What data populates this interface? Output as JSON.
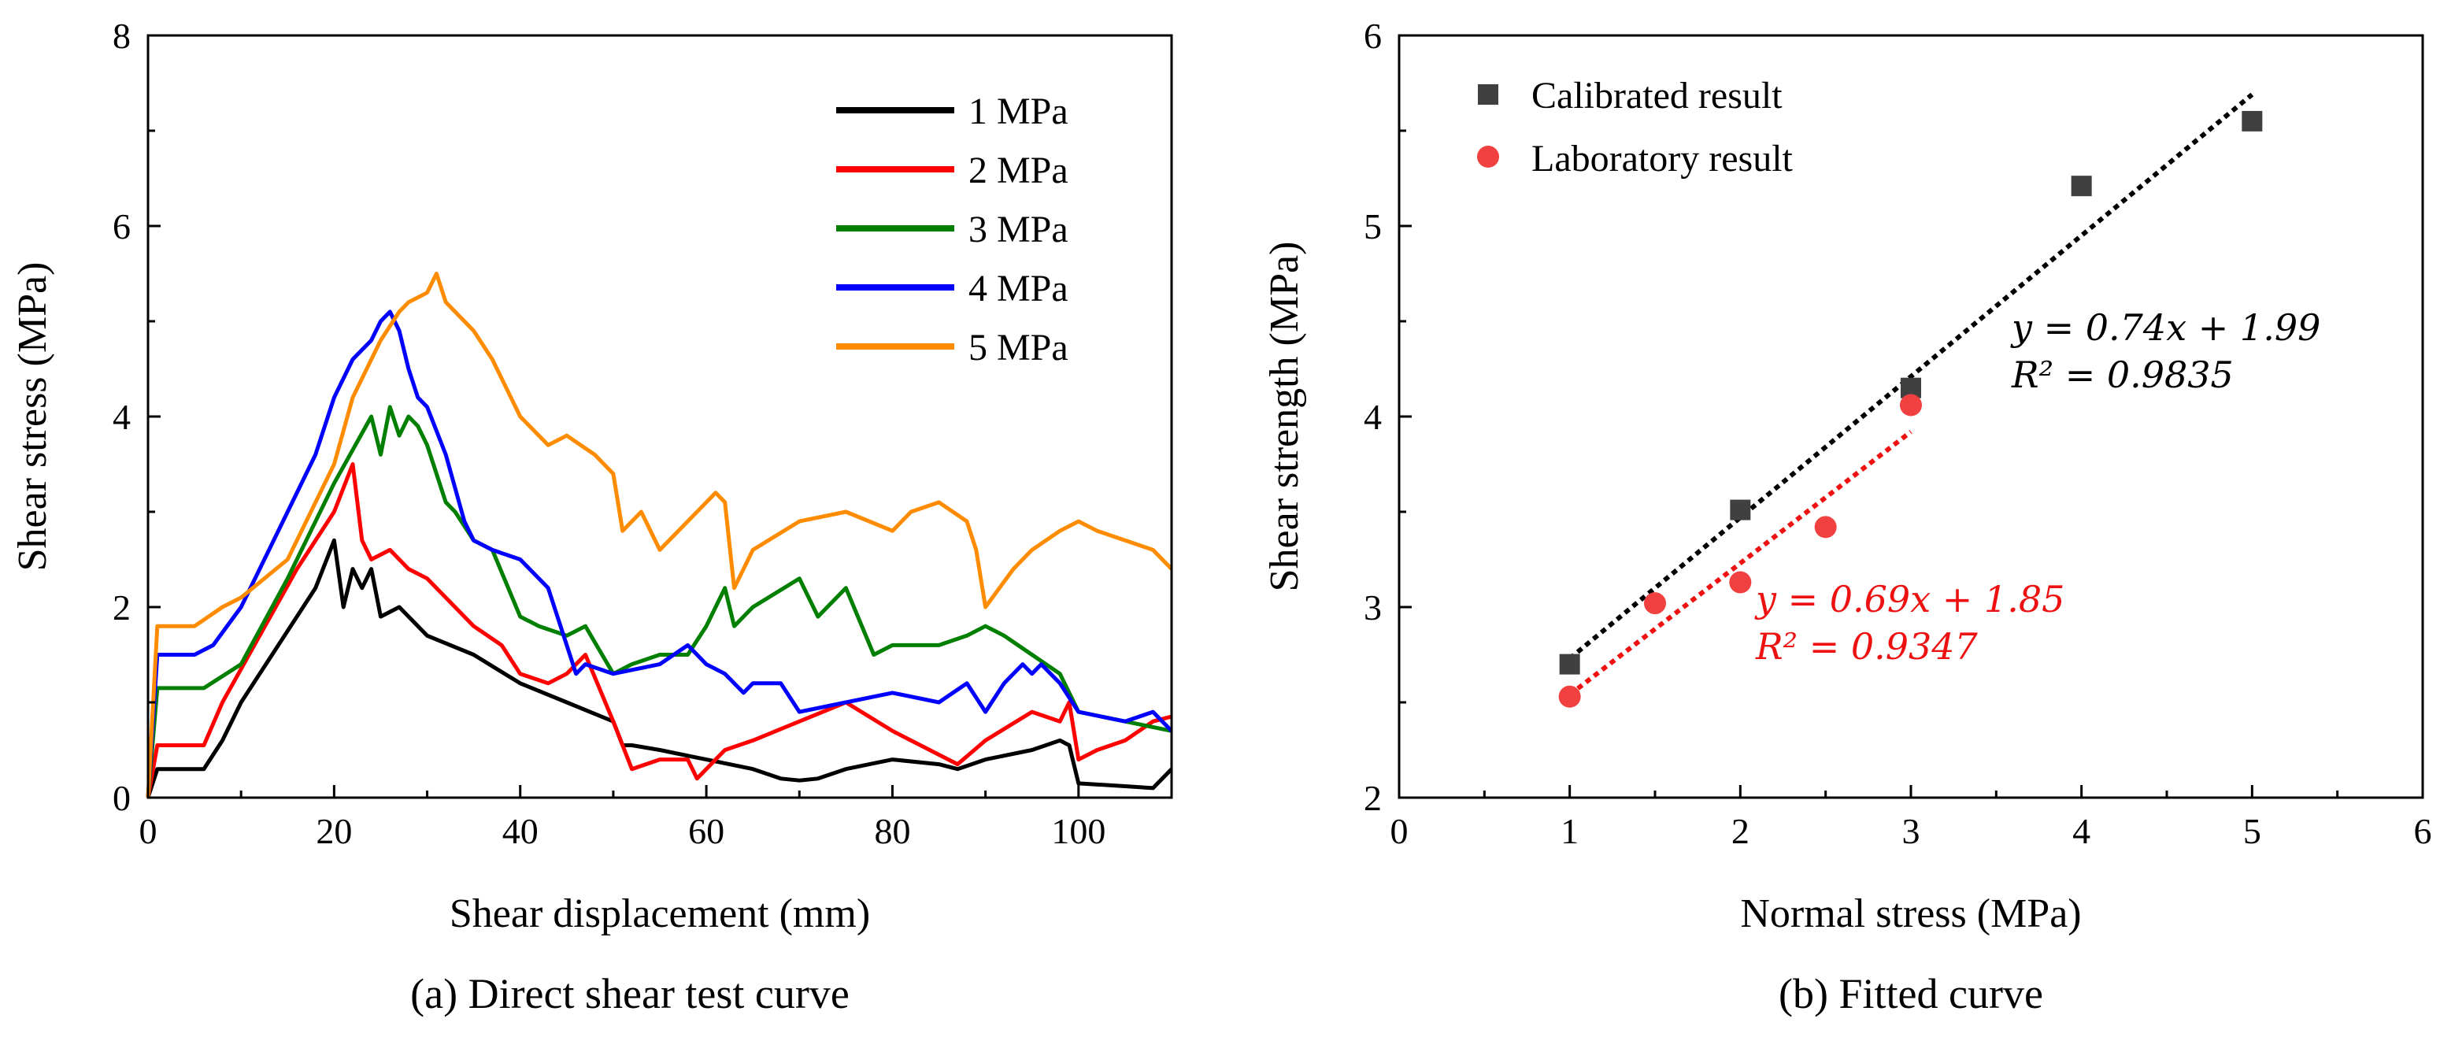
{
  "chart_data": [
    {
      "type": "line",
      "caption": "(a) Direct shear test curve",
      "xlabel": "Shear displacement (mm)",
      "ylabel": "Shear stress (MPa)",
      "xlim": [
        0,
        110
      ],
      "ylim": [
        0,
        8
      ],
      "xticks": [
        0,
        20,
        40,
        60,
        80,
        100
      ],
      "yticks": [
        0,
        2,
        4,
        6,
        8
      ],
      "legend_position": "top-right",
      "series": [
        {
          "name": "1 MPa",
          "color": "#000000",
          "x": [
            0,
            1,
            6,
            8,
            10,
            14,
            18,
            20,
            21,
            22,
            23,
            24,
            25,
            27,
            30,
            35,
            40,
            45,
            50,
            51,
            52,
            55,
            60,
            65,
            68,
            70,
            72,
            75,
            80,
            85,
            87,
            90,
            95,
            98,
            99,
            100,
            105,
            108,
            110
          ],
          "y": [
            0,
            0.3,
            0.3,
            0.6,
            1.0,
            1.6,
            2.2,
            2.7,
            2.0,
            2.4,
            2.2,
            2.4,
            1.9,
            2.0,
            1.7,
            1.5,
            1.2,
            1.0,
            0.8,
            0.55,
            0.55,
            0.5,
            0.4,
            0.3,
            0.2,
            0.18,
            0.2,
            0.3,
            0.4,
            0.35,
            0.3,
            0.4,
            0.5,
            0.6,
            0.55,
            0.15,
            0.12,
            0.1,
            0.3
          ]
        },
        {
          "name": "2 MPa",
          "color": "#ff0000",
          "x": [
            0,
            1,
            6,
            8,
            12,
            16,
            20,
            22,
            23,
            24,
            26,
            28,
            30,
            35,
            38,
            40,
            43,
            45,
            47,
            50,
            52,
            55,
            58,
            59,
            62,
            65,
            70,
            75,
            80,
            87,
            90,
            95,
            98,
            99,
            100,
            102,
            105,
            108,
            110
          ],
          "y": [
            0,
            0.55,
            0.55,
            1.0,
            1.7,
            2.4,
            3.0,
            3.5,
            2.7,
            2.5,
            2.6,
            2.4,
            2.3,
            1.8,
            1.6,
            1.3,
            1.2,
            1.3,
            1.5,
            0.8,
            0.3,
            0.4,
            0.4,
            0.2,
            0.5,
            0.6,
            0.8,
            1.0,
            0.7,
            0.35,
            0.6,
            0.9,
            0.8,
            1.0,
            0.4,
            0.5,
            0.6,
            0.8,
            0.85
          ]
        },
        {
          "name": "3 MPa",
          "color": "#007f00",
          "x": [
            0,
            1,
            6,
            10,
            15,
            20,
            24,
            25,
            26,
            27,
            28,
            29,
            30,
            32,
            33,
            35,
            37,
            40,
            42,
            45,
            47,
            50,
            52,
            55,
            58,
            60,
            62,
            63,
            65,
            70,
            72,
            73,
            75,
            78,
            80,
            85,
            88,
            90,
            92,
            95,
            98,
            100,
            105,
            110
          ],
          "y": [
            0,
            1.15,
            1.15,
            1.4,
            2.3,
            3.3,
            4.0,
            3.6,
            4.1,
            3.8,
            4.0,
            3.9,
            3.7,
            3.1,
            3.0,
            2.7,
            2.6,
            1.9,
            1.8,
            1.7,
            1.8,
            1.3,
            1.4,
            1.5,
            1.5,
            1.8,
            2.2,
            1.8,
            2.0,
            2.3,
            1.9,
            2.0,
            2.2,
            1.5,
            1.6,
            1.6,
            1.7,
            1.8,
            1.7,
            1.5,
            1.3,
            0.9,
            0.8,
            0.7
          ]
        },
        {
          "name": "4 MPa",
          "color": "#0000ff",
          "x": [
            0,
            1,
            5,
            7,
            10,
            14,
            18,
            20,
            22,
            24,
            25,
            26,
            27,
            28,
            29,
            30,
            32,
            34,
            35,
            37,
            40,
            43,
            45,
            46,
            47,
            50,
            55,
            58,
            60,
            62,
            64,
            65,
            68,
            70,
            75,
            80,
            85,
            88,
            90,
            92,
            94,
            95,
            96,
            98,
            100,
            105,
            108,
            110
          ],
          "y": [
            0,
            1.5,
            1.5,
            1.6,
            2.0,
            2.8,
            3.6,
            4.2,
            4.6,
            4.8,
            5.0,
            5.1,
            4.9,
            4.5,
            4.2,
            4.1,
            3.6,
            2.9,
            2.7,
            2.6,
            2.5,
            2.2,
            1.6,
            1.3,
            1.4,
            1.3,
            1.4,
            1.6,
            1.4,
            1.3,
            1.1,
            1.2,
            1.2,
            0.9,
            1.0,
            1.1,
            1.0,
            1.2,
            0.9,
            1.2,
            1.4,
            1.3,
            1.4,
            1.2,
            0.9,
            0.8,
            0.9,
            0.7
          ]
        },
        {
          "name": "5 MPa",
          "color": "#ff8c00",
          "x": [
            0,
            1,
            5,
            8,
            10,
            15,
            20,
            22,
            25,
            27,
            28,
            30,
            31,
            32,
            35,
            37,
            40,
            43,
            45,
            48,
            50,
            51,
            53,
            55,
            57,
            60,
            61,
            62,
            63,
            65,
            70,
            75,
            80,
            82,
            85,
            88,
            89,
            90,
            93,
            95,
            98,
            100,
            102,
            105,
            108,
            110
          ],
          "y": [
            0,
            1.8,
            1.8,
            2.0,
            2.1,
            2.5,
            3.5,
            4.2,
            4.8,
            5.1,
            5.2,
            5.3,
            5.5,
            5.2,
            4.9,
            4.6,
            4.0,
            3.7,
            3.8,
            3.6,
            3.4,
            2.8,
            3.0,
            2.6,
            2.8,
            3.1,
            3.2,
            3.1,
            2.2,
            2.6,
            2.9,
            3.0,
            2.8,
            3.0,
            3.1,
            2.9,
            2.6,
            2.0,
            2.4,
            2.6,
            2.8,
            2.9,
            2.8,
            2.7,
            2.6,
            2.4
          ]
        }
      ]
    },
    {
      "type": "scatter",
      "caption": "(b) Fitted curve",
      "xlabel": "Normal stress (MPa)",
      "ylabel": "Shear strength (MPa)",
      "xlim": [
        0,
        6
      ],
      "ylim": [
        2,
        6
      ],
      "xticks": [
        0,
        1,
        2,
        3,
        4,
        5,
        6
      ],
      "yticks": [
        2,
        3,
        4,
        5,
        6
      ],
      "legend_position": "top-left",
      "series": [
        {
          "name": "Calibrated result",
          "marker": "square",
          "color": "#404040",
          "x": [
            1,
            2,
            3,
            4,
            5
          ],
          "y": [
            2.7,
            3.51,
            4.15,
            5.21,
            5.55
          ],
          "fit": {
            "slope": 0.74,
            "intercept": 1.99,
            "x_range": [
              1,
              5
            ],
            "color": "#000000",
            "equation": "y = 0.74x + 1.99",
            "r2": "R² = 0.9835"
          }
        },
        {
          "name": "Laboratory result",
          "marker": "circle",
          "color": "#f04040",
          "x": [
            1,
            1.5,
            2,
            2.5,
            3
          ],
          "y": [
            2.53,
            3.02,
            3.13,
            3.42,
            4.06
          ],
          "fit": {
            "slope": 0.69,
            "intercept": 1.85,
            "x_range": [
              1,
              3
            ],
            "color": "#ee1111",
            "equation": "y = 0.69x + 1.85",
            "r2": "R² = 0.9347"
          }
        }
      ]
    }
  ]
}
